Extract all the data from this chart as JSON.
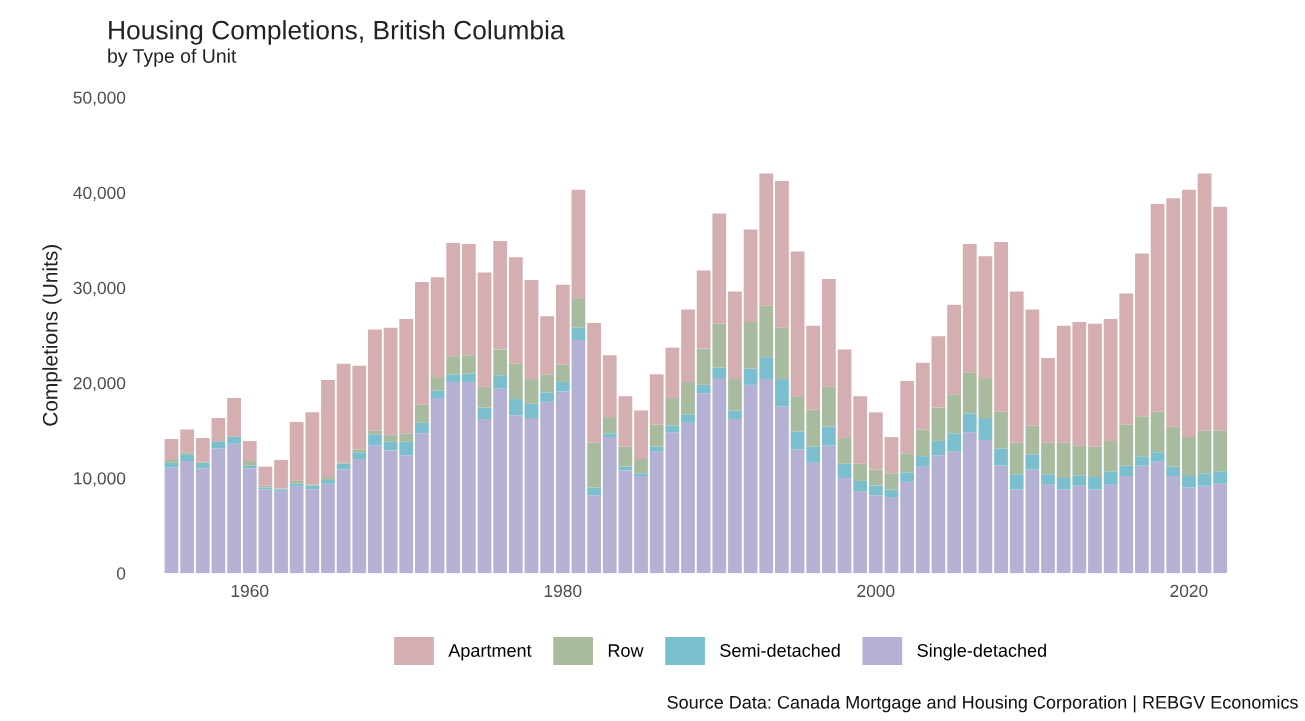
{
  "chart_data": {
    "type": "bar",
    "stacked": true,
    "title": "Housing Completions, British Columbia",
    "subtitle": "by Type of Unit",
    "ylabel": "Completions (Units)",
    "categories": [
      null,
      null,
      null,
      null,
      null,
      "1960",
      null,
      null,
      null,
      null,
      null,
      null,
      null,
      null,
      null,
      null,
      null,
      null,
      null,
      null,
      null,
      null,
      null,
      null,
      null,
      "1980",
      null,
      null,
      null,
      null,
      null,
      null,
      null,
      null,
      null,
      null,
      null,
      null,
      null,
      null,
      null,
      null,
      null,
      null,
      null,
      "2000",
      null,
      null,
      null,
      null,
      null,
      null,
      null,
      null,
      null,
      null,
      null,
      null,
      null,
      null,
      null,
      null,
      null,
      null,
      null,
      "2020",
      null,
      null
    ],
    "series": [
      {
        "name": "Single-detached",
        "color": "#b5b1d5",
        "values": [
          11100,
          11800,
          11000,
          13100,
          13600,
          11000,
          8800,
          8600,
          9100,
          8800,
          9400,
          10900,
          12000,
          13400,
          12900,
          12400,
          14700,
          18400,
          20100,
          20100,
          16200,
          19400,
          16600,
          16300,
          18000,
          19100,
          24500,
          8200,
          14300,
          10800,
          10200,
          12800,
          14800,
          15800,
          18900,
          20500,
          16200,
          19800,
          20400,
          17500,
          13000,
          11600,
          13400,
          10000,
          8600,
          8200,
          8000,
          9600,
          11200,
          12400,
          12800,
          14800,
          14000,
          11300,
          8800,
          10900,
          9300,
          8800,
          9200,
          8800,
          9300,
          10200,
          11300,
          11700,
          10200,
          9000,
          9200,
          9400
        ]
      },
      {
        "name": "Semi-detached",
        "color": "#7bbfcf",
        "values": [
          500,
          700,
          600,
          700,
          700,
          300,
          200,
          200,
          300,
          400,
          400,
          600,
          700,
          1200,
          900,
          1400,
          1100,
          800,
          800,
          900,
          1200,
          1400,
          1700,
          1500,
          1000,
          1000,
          1300,
          800,
          400,
          400,
          300,
          500,
          700,
          900,
          900,
          1100,
          900,
          1700,
          2300,
          2900,
          1900,
          1700,
          2000,
          1500,
          1100,
          1000,
          800,
          1000,
          1100,
          1500,
          1900,
          2000,
          2300,
          1800,
          1600,
          1600,
          1100,
          1200,
          1100,
          1300,
          1400,
          1100,
          1000,
          1000,
          1000,
          1200,
          1300,
          1300
        ]
      },
      {
        "name": "Row",
        "color": "#a9bb9f",
        "values": [
          300,
          200,
          100,
          100,
          100,
          500,
          200,
          100,
          300,
          100,
          300,
          100,
          300,
          400,
          700,
          900,
          1900,
          1400,
          1900,
          1900,
          2200,
          2700,
          3700,
          2600,
          1900,
          1800,
          3100,
          4700,
          1700,
          2100,
          1500,
          2300,
          2900,
          3400,
          3800,
          4600,
          3300,
          4900,
          5400,
          5400,
          3700,
          3900,
          4200,
          2700,
          1800,
          1700,
          1700,
          2000,
          2800,
          3500,
          4100,
          4300,
          4200,
          3900,
          3300,
          3000,
          3300,
          3700,
          3100,
          3200,
          3200,
          4300,
          4200,
          4300,
          4200,
          4100,
          4500,
          4300
        ]
      },
      {
        "name": "Apartment",
        "color": "#d4aeb0",
        "values": [
          2200,
          2400,
          2500,
          2400,
          4000,
          2100,
          2000,
          3000,
          6200,
          7600,
          10200,
          10400,
          8800,
          10600,
          11300,
          12000,
          12900,
          10500,
          11900,
          11700,
          12000,
          11400,
          11200,
          10400,
          6100,
          8400,
          11400,
          12600,
          6500,
          5300,
          5100,
          5300,
          5300,
          7600,
          8200,
          11600,
          9200,
          9700,
          13900,
          15400,
          15200,
          8800,
          11300,
          9300,
          7100,
          6000,
          3800,
          7600,
          7000,
          7500,
          9400,
          13500,
          12800,
          17800,
          15900,
          12200,
          8900,
          12300,
          13000,
          12900,
          12800,
          13800,
          17100,
          21800,
          24000,
          26000,
          27000,
          23500
        ]
      }
    ],
    "ylim": [
      0,
      50000
    ],
    "yticks": [
      {
        "value": 0,
        "label": "0"
      },
      {
        "value": 10000,
        "label": "10,000"
      },
      {
        "value": 20000,
        "label": "20,000"
      },
      {
        "value": 30000,
        "label": "30,000"
      },
      {
        "value": 40000,
        "label": "40,000"
      },
      {
        "value": 50000,
        "label": "50,000"
      }
    ],
    "legend": "bottom",
    "grid": false,
    "annotations": [
      "Source Data: Canada Mortgage and Housing Corporation | REBGV Economics"
    ]
  }
}
